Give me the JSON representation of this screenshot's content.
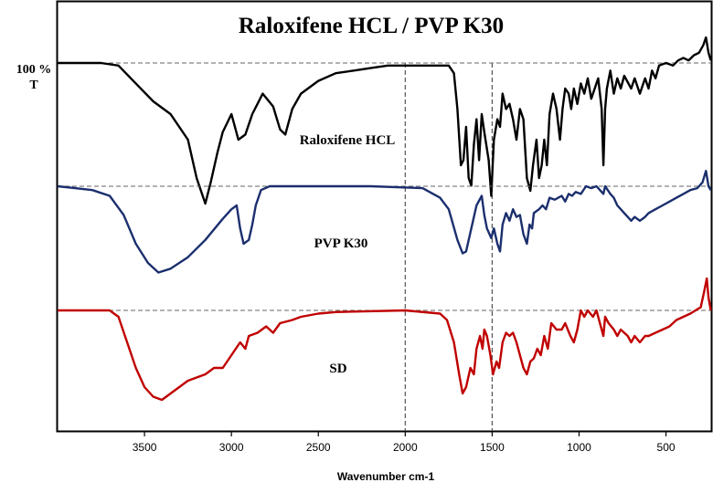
{
  "chart_data": {
    "type": "line",
    "title": "Raloxifene HCL / PVP K30",
    "xlabel": "Wavenumber cm-1",
    "ylabel_line1": "100 %",
    "ylabel_line2": "T",
    "xlim": [
      4000,
      240
    ],
    "x_ticks": [
      3500,
      3000,
      2500,
      2000,
      1500,
      1000,
      500
    ],
    "x_tick_labels": [
      "3500",
      "3000",
      "2500",
      "2000",
      "1500",
      "1000",
      "500"
    ],
    "reference_vlines": [
      2000,
      1500
    ],
    "series": [
      {
        "name": "Raloxifene HCL",
        "color": "#000000",
        "baseline": 100,
        "points": [
          [
            4000,
            100
          ],
          [
            3750,
            100
          ],
          [
            3650,
            99
          ],
          [
            3550,
            92
          ],
          [
            3450,
            85
          ],
          [
            3350,
            80
          ],
          [
            3250,
            70
          ],
          [
            3200,
            55
          ],
          [
            3150,
            45
          ],
          [
            3120,
            53
          ],
          [
            3080,
            65
          ],
          [
            3050,
            73
          ],
          [
            3000,
            80
          ],
          [
            2960,
            70
          ],
          [
            2920,
            72
          ],
          [
            2880,
            80
          ],
          [
            2820,
            88
          ],
          [
            2760,
            83
          ],
          [
            2720,
            74
          ],
          [
            2690,
            72
          ],
          [
            2650,
            82
          ],
          [
            2600,
            88
          ],
          [
            2500,
            93
          ],
          [
            2400,
            96
          ],
          [
            2300,
            97
          ],
          [
            2200,
            98
          ],
          [
            2100,
            99
          ],
          [
            1900,
            99
          ],
          [
            1750,
            99
          ],
          [
            1720,
            96
          ],
          [
            1700,
            82
          ],
          [
            1680,
            60
          ],
          [
            1665,
            62
          ],
          [
            1650,
            75
          ],
          [
            1635,
            55
          ],
          [
            1620,
            52
          ],
          [
            1605,
            68
          ],
          [
            1590,
            78
          ],
          [
            1575,
            62
          ],
          [
            1560,
            80
          ],
          [
            1545,
            73
          ],
          [
            1520,
            62
          ],
          [
            1505,
            48
          ],
          [
            1490,
            70
          ],
          [
            1470,
            78
          ],
          [
            1455,
            75
          ],
          [
            1440,
            88
          ],
          [
            1420,
            82
          ],
          [
            1400,
            84
          ],
          [
            1380,
            78
          ],
          [
            1360,
            70
          ],
          [
            1340,
            82
          ],
          [
            1320,
            78
          ],
          [
            1300,
            55
          ],
          [
            1280,
            50
          ],
          [
            1265,
            60
          ],
          [
            1245,
            70
          ],
          [
            1230,
            55
          ],
          [
            1215,
            60
          ],
          [
            1200,
            70
          ],
          [
            1185,
            60
          ],
          [
            1170,
            80
          ],
          [
            1150,
            88
          ],
          [
            1130,
            82
          ],
          [
            1110,
            70
          ],
          [
            1095,
            82
          ],
          [
            1080,
            90
          ],
          [
            1060,
            88
          ],
          [
            1045,
            82
          ],
          [
            1030,
            90
          ],
          [
            1010,
            84
          ],
          [
            990,
            92
          ],
          [
            970,
            88
          ],
          [
            950,
            94
          ],
          [
            930,
            86
          ],
          [
            910,
            90
          ],
          [
            890,
            94
          ],
          [
            870,
            82
          ],
          [
            860,
            60
          ],
          [
            850,
            82
          ],
          [
            840,
            90
          ],
          [
            820,
            97
          ],
          [
            800,
            88
          ],
          [
            780,
            94
          ],
          [
            760,
            90
          ],
          [
            740,
            95
          ],
          [
            700,
            90
          ],
          [
            680,
            94
          ],
          [
            650,
            88
          ],
          [
            620,
            94
          ],
          [
            600,
            90
          ],
          [
            580,
            97
          ],
          [
            560,
            94
          ],
          [
            540,
            99
          ],
          [
            500,
            100
          ],
          [
            460,
            99
          ],
          [
            430,
            101
          ],
          [
            400,
            102
          ],
          [
            370,
            101
          ],
          [
            340,
            103
          ],
          [
            310,
            104
          ],
          [
            285,
            107
          ],
          [
            270,
            110
          ],
          [
            255,
            104
          ],
          [
            242,
            101
          ]
        ]
      },
      {
        "name": "PVP K30",
        "color": "#1b2f6e",
        "baseline": 100,
        "points": [
          [
            4000,
            100
          ],
          [
            3900,
            99
          ],
          [
            3800,
            98
          ],
          [
            3700,
            95
          ],
          [
            3620,
            85
          ],
          [
            3550,
            70
          ],
          [
            3480,
            60
          ],
          [
            3420,
            55
          ],
          [
            3350,
            57
          ],
          [
            3250,
            63
          ],
          [
            3150,
            72
          ],
          [
            3050,
            83
          ],
          [
            3000,
            88
          ],
          [
            2970,
            90
          ],
          [
            2950,
            78
          ],
          [
            2930,
            70
          ],
          [
            2900,
            72
          ],
          [
            2880,
            80
          ],
          [
            2860,
            90
          ],
          [
            2830,
            98
          ],
          [
            2780,
            100
          ],
          [
            2500,
            100
          ],
          [
            2200,
            100
          ],
          [
            1900,
            99
          ],
          [
            1800,
            94
          ],
          [
            1750,
            88
          ],
          [
            1700,
            72
          ],
          [
            1670,
            65
          ],
          [
            1650,
            66
          ],
          [
            1620,
            78
          ],
          [
            1590,
            90
          ],
          [
            1560,
            95
          ],
          [
            1545,
            85
          ],
          [
            1530,
            78
          ],
          [
            1505,
            73
          ],
          [
            1490,
            78
          ],
          [
            1470,
            70
          ],
          [
            1455,
            66
          ],
          [
            1440,
            80
          ],
          [
            1420,
            86
          ],
          [
            1400,
            82
          ],
          [
            1380,
            88
          ],
          [
            1360,
            84
          ],
          [
            1340,
            85
          ],
          [
            1320,
            75
          ],
          [
            1300,
            70
          ],
          [
            1285,
            80
          ],
          [
            1270,
            78
          ],
          [
            1260,
            86
          ],
          [
            1230,
            88
          ],
          [
            1210,
            90
          ],
          [
            1190,
            88
          ],
          [
            1170,
            94
          ],
          [
            1140,
            93
          ],
          [
            1100,
            95
          ],
          [
            1080,
            92
          ],
          [
            1060,
            96
          ],
          [
            1040,
            95
          ],
          [
            1020,
            97
          ],
          [
            990,
            96
          ],
          [
            960,
            100
          ],
          [
            930,
            99
          ],
          [
            900,
            100
          ],
          [
            880,
            98
          ],
          [
            860,
            96
          ],
          [
            850,
            100
          ],
          [
            820,
            96
          ],
          [
            800,
            94
          ],
          [
            780,
            90
          ],
          [
            760,
            88
          ],
          [
            740,
            86
          ],
          [
            720,
            84
          ],
          [
            700,
            82
          ],
          [
            680,
            84
          ],
          [
            650,
            82
          ],
          [
            620,
            84
          ],
          [
            600,
            86
          ],
          [
            560,
            88
          ],
          [
            520,
            90
          ],
          [
            480,
            92
          ],
          [
            440,
            94
          ],
          [
            400,
            96
          ],
          [
            360,
            98
          ],
          [
            320,
            99
          ],
          [
            290,
            102
          ],
          [
            270,
            108
          ],
          [
            255,
            100
          ],
          [
            242,
            98
          ]
        ]
      },
      {
        "name": "SD",
        "color": "#c00000",
        "baseline": 100,
        "points": [
          [
            4000,
            100
          ],
          [
            3700,
            100
          ],
          [
            3650,
            98
          ],
          [
            3600,
            90
          ],
          [
            3550,
            82
          ],
          [
            3500,
            76
          ],
          [
            3450,
            73
          ],
          [
            3400,
            72
          ],
          [
            3350,
            74
          ],
          [
            3250,
            78
          ],
          [
            3150,
            80
          ],
          [
            3100,
            82
          ],
          [
            3050,
            82
          ],
          [
            3000,
            86
          ],
          [
            2950,
            90
          ],
          [
            2920,
            88
          ],
          [
            2900,
            92
          ],
          [
            2850,
            93
          ],
          [
            2800,
            95
          ],
          [
            2760,
            93
          ],
          [
            2720,
            96
          ],
          [
            2650,
            97
          ],
          [
            2600,
            98
          ],
          [
            2500,
            99
          ],
          [
            2400,
            99.5
          ],
          [
            2000,
            100
          ],
          [
            1800,
            99
          ],
          [
            1760,
            97
          ],
          [
            1720,
            90
          ],
          [
            1690,
            80
          ],
          [
            1670,
            74
          ],
          [
            1650,
            76
          ],
          [
            1625,
            82
          ],
          [
            1605,
            80
          ],
          [
            1590,
            88
          ],
          [
            1570,
            92
          ],
          [
            1555,
            88
          ],
          [
            1545,
            94
          ],
          [
            1530,
            92
          ],
          [
            1510,
            86
          ],
          [
            1495,
            80
          ],
          [
            1475,
            84
          ],
          [
            1460,
            82
          ],
          [
            1440,
            90
          ],
          [
            1420,
            93
          ],
          [
            1400,
            92
          ],
          [
            1380,
            93
          ],
          [
            1360,
            90
          ],
          [
            1340,
            86
          ],
          [
            1320,
            82
          ],
          [
            1300,
            80
          ],
          [
            1280,
            84
          ],
          [
            1260,
            85
          ],
          [
            1240,
            88
          ],
          [
            1220,
            86
          ],
          [
            1200,
            92
          ],
          [
            1180,
            88
          ],
          [
            1160,
            96
          ],
          [
            1130,
            94
          ],
          [
            1100,
            94
          ],
          [
            1080,
            96
          ],
          [
            1050,
            92
          ],
          [
            1030,
            90
          ],
          [
            1010,
            94
          ],
          [
            990,
            100
          ],
          [
            970,
            98
          ],
          [
            950,
            100
          ],
          [
            920,
            98
          ],
          [
            900,
            100
          ],
          [
            880,
            96
          ],
          [
            860,
            92
          ],
          [
            850,
            98
          ],
          [
            830,
            96
          ],
          [
            800,
            94
          ],
          [
            780,
            92
          ],
          [
            760,
            94
          ],
          [
            720,
            92
          ],
          [
            700,
            90
          ],
          [
            680,
            92
          ],
          [
            650,
            90
          ],
          [
            620,
            92
          ],
          [
            600,
            92
          ],
          [
            560,
            93
          ],
          [
            520,
            94
          ],
          [
            480,
            95
          ],
          [
            440,
            97
          ],
          [
            400,
            98
          ],
          [
            360,
            99
          ],
          [
            330,
            100
          ],
          [
            300,
            101
          ],
          [
            280,
            106
          ],
          [
            265,
            110
          ],
          [
            255,
            104
          ],
          [
            242,
            100
          ]
        ]
      }
    ],
    "grid": false,
    "legend": "inline-labels"
  }
}
